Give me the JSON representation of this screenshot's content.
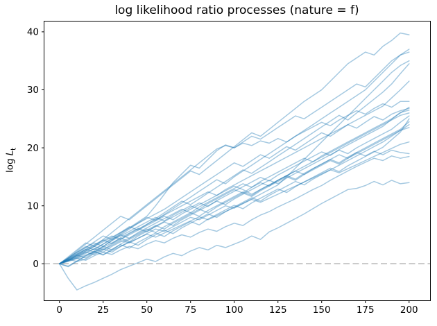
{
  "chart_data": {
    "type": "line",
    "title": "log likelihood ratio processes (nature = f)",
    "ylabel": {
      "prefix": "log",
      "var": "L",
      "sub": "t"
    },
    "xlabel": "",
    "xlim": [
      -9,
      212
    ],
    "ylim": [
      -6.3,
      41.9
    ],
    "xticks": [
      0,
      25,
      50,
      75,
      100,
      125,
      150,
      175,
      200
    ],
    "yticks": [
      0,
      10,
      20,
      30,
      40
    ],
    "grid": false,
    "legend": "none",
    "zero_line": {
      "y": 0,
      "style": "dashed",
      "color": "#ababab"
    },
    "line_color": "#1f77b4",
    "line_alpha": 0.4,
    "line_width": 1.5,
    "x_start": 0,
    "x_step": 5,
    "series": [
      {
        "name": "path-01",
        "values": [
          0,
          -2.5,
          -4.5,
          -3.8,
          -3.2,
          -2.5,
          -1.8,
          -1,
          -0.4,
          0.2,
          0.8,
          0.4,
          1.2,
          1.8,
          1.4,
          2.2,
          2.8,
          2.4,
          3.2,
          2.8,
          3.4,
          4,
          4.8,
          4.2,
          5.5,
          6.2,
          7,
          7.8,
          8.6,
          9.5,
          10.4,
          11.2,
          12,
          12.8,
          13,
          13.5,
          14.2,
          13.6,
          14.4,
          13.8,
          14
        ]
      },
      {
        "name": "path-02",
        "values": [
          0,
          0.5,
          1,
          0.6,
          1.4,
          2,
          1.6,
          2.4,
          3,
          2.6,
          3.4,
          4,
          3.6,
          4.4,
          5,
          4.6,
          5.4,
          6,
          5.6,
          6.4,
          7,
          6.6,
          7.6,
          8.4,
          9,
          9.8,
          10.5,
          11.2,
          12,
          12.8,
          13.5,
          14.4,
          15.2,
          16,
          16.8,
          17.5,
          18.2,
          17.8,
          18.6,
          18.2,
          18.5
        ]
      },
      {
        "name": "path-03",
        "values": [
          0,
          0.6,
          1.2,
          2,
          2.6,
          2,
          3,
          3.8,
          4.4,
          5.2,
          6,
          5.4,
          6.4,
          7.2,
          8,
          8.8,
          8.2,
          9.2,
          10,
          10.8,
          11.6,
          12.4,
          11.8,
          12.8,
          13.6,
          14.4,
          15.2,
          14.6,
          15.6,
          16.4,
          17.2,
          18,
          17.4,
          18.4,
          19.2,
          18.6,
          19.4,
          18.8,
          19.6,
          19.2,
          19
        ]
      },
      {
        "name": "path-04",
        "values": [
          0,
          0.8,
          0.4,
          1.4,
          2.2,
          3,
          2.4,
          3.4,
          4.2,
          5,
          5.8,
          6.6,
          6,
          7,
          7.8,
          8.6,
          9.4,
          8.8,
          9.8,
          10.6,
          11.4,
          12.2,
          11.6,
          12.6,
          13.4,
          14.2,
          15,
          14.4,
          15.4,
          16.2,
          17,
          17.8,
          17.2,
          18.2,
          19,
          19.8,
          20.6,
          21.4,
          22.2,
          23,
          23.5
        ]
      },
      {
        "name": "path-05",
        "values": [
          0,
          -0.5,
          0.4,
          0.8,
          1.8,
          2.6,
          2,
          3,
          3.8,
          3.2,
          4.2,
          5,
          5.8,
          5.2,
          6.2,
          7,
          7.8,
          8.6,
          8,
          9,
          9.8,
          10.6,
          11.4,
          10.8,
          11.8,
          12.6,
          13.4,
          14.2,
          13.6,
          14.6,
          15.4,
          16.2,
          17,
          17.8,
          18.6,
          19.4,
          20.2,
          21,
          22,
          23,
          24
        ]
      },
      {
        "name": "path-06",
        "values": [
          0,
          1,
          2,
          2.8,
          3.6,
          3,
          4,
          4.8,
          5.6,
          6.4,
          7.2,
          8,
          7.4,
          8.4,
          9.2,
          10,
          9.4,
          10.4,
          11.2,
          12,
          12.8,
          12.2,
          13.2,
          14,
          13.4,
          14.4,
          15.2,
          16,
          15.4,
          16.4,
          17.2,
          18,
          18.8,
          18.2,
          19.2,
          20,
          20.8,
          21.6,
          22.4,
          23.2,
          24.5
        ]
      },
      {
        "name": "path-07",
        "values": [
          0,
          -0.4,
          0.5,
          1.3,
          2.1,
          1.5,
          2.5,
          3.3,
          2.7,
          3.7,
          4.5,
          5.3,
          4.7,
          5.7,
          6.5,
          7.3,
          6.7,
          7.7,
          8.5,
          9.3,
          10.1,
          9.5,
          10.5,
          11.3,
          12.1,
          12.9,
          12.3,
          13.3,
          14.1,
          14.9,
          15.7,
          16.5,
          15.9,
          16.9,
          17.7,
          18.5,
          19.3,
          20.1,
          21.4,
          22.7,
          25
        ]
      },
      {
        "name": "path-08",
        "values": [
          0,
          0.7,
          1.5,
          1,
          2,
          2.8,
          3.6,
          4.4,
          3.8,
          4.8,
          5.6,
          6.4,
          7.2,
          6.6,
          7.6,
          8.4,
          9.2,
          10,
          10.8,
          10.2,
          11.2,
          12,
          12.8,
          13.6,
          14.4,
          13.8,
          14.8,
          15.6,
          16.4,
          17.2,
          18,
          18.8,
          19.6,
          19,
          20,
          20.8,
          21.6,
          22.4,
          23.2,
          24.4,
          25.5
        ]
      },
      {
        "name": "path-09",
        "values": [
          0,
          0.6,
          1.4,
          2.2,
          3,
          2.4,
          3.4,
          4.2,
          5,
          5.8,
          6.6,
          7.4,
          8.2,
          7.6,
          8.6,
          9.4,
          10.2,
          11,
          11.8,
          12.6,
          13.4,
          12.8,
          12,
          12.8,
          13.6,
          14.4,
          15.2,
          16,
          16.8,
          17.6,
          18.4,
          19.2,
          20,
          20.8,
          21.6,
          22.4,
          23.2,
          24,
          24.8,
          25.6,
          26
        ]
      },
      {
        "name": "path-10",
        "values": [
          0,
          0.9,
          1.7,
          2.5,
          3.3,
          4.1,
          3.5,
          4.5,
          5.3,
          6.1,
          5.5,
          6.5,
          7.3,
          8.1,
          8.9,
          9.7,
          10.5,
          9.9,
          10.9,
          11.7,
          12.5,
          13.3,
          14.1,
          14.9,
          14.3,
          15.3,
          16.1,
          16.9,
          17.7,
          18.5,
          19.3,
          18.7,
          19.7,
          20.5,
          21.3,
          22.1,
          22.9,
          23.7,
          24.9,
          26.1,
          26.5
        ]
      },
      {
        "name": "path-11",
        "values": [
          0,
          0.5,
          1,
          1.8,
          2.6,
          3.4,
          4.2,
          5,
          4.4,
          5.4,
          6.2,
          7,
          7.8,
          8.6,
          9.4,
          8.8,
          9.8,
          10.6,
          11.4,
          12.2,
          13,
          13.8,
          13.2,
          14.2,
          15,
          15.8,
          16.6,
          17.4,
          18.2,
          17.6,
          18.6,
          19.4,
          20.2,
          21,
          21.8,
          22.6,
          23.4,
          24.2,
          25,
          26,
          27
        ]
      },
      {
        "name": "path-12",
        "values": [
          0,
          1.2,
          2.4,
          3.6,
          3,
          4.2,
          5.4,
          6.6,
          7.8,
          9,
          10.2,
          11.4,
          12.6,
          13.8,
          15,
          16.2,
          17.4,
          18.6,
          19.8,
          20.4,
          20,
          20.8,
          20.4,
          21.2,
          20.8,
          21.6,
          21,
          22,
          22.8,
          23.6,
          24.4,
          23.8,
          24.8,
          25.6,
          26.4,
          25.8,
          26.8,
          27.6,
          27,
          28,
          28
        ]
      },
      {
        "name": "path-13",
        "values": [
          0,
          0.8,
          1.6,
          2.4,
          3.2,
          4,
          4.8,
          4.2,
          5.2,
          6,
          6.8,
          7.6,
          8.4,
          9.2,
          10,
          10.8,
          11.6,
          12.4,
          11.8,
          12.8,
          13.6,
          14.4,
          15.2,
          16,
          16.8,
          17.6,
          18.4,
          19.2,
          20,
          20.8,
          21.6,
          22.4,
          23.2,
          24,
          24.8,
          25.6,
          26.4,
          27.2,
          28.6,
          30,
          31.5
        ]
      },
      {
        "name": "path-14",
        "values": [
          0,
          1,
          2,
          3,
          2.4,
          3.4,
          4.4,
          5.4,
          6.4,
          5.8,
          6.8,
          7.8,
          8.8,
          9.8,
          10.8,
          10.2,
          11.2,
          12.2,
          13.2,
          14.2,
          15.2,
          16.2,
          15.6,
          16.6,
          17.6,
          18.6,
          19.6,
          20.6,
          21.6,
          22.6,
          23.6,
          24.6,
          25.6,
          24.8,
          26,
          27.2,
          28.4,
          29.6,
          31,
          32.8,
          34.5
        ]
      },
      {
        "name": "path-15",
        "values": [
          0,
          0.6,
          1.2,
          2,
          1.6,
          2.4,
          3.2,
          4,
          3.6,
          4.4,
          5.2,
          6,
          5.6,
          6.4,
          7.2,
          8,
          7.6,
          8.4,
          9.2,
          10,
          9.6,
          10.4,
          11.2,
          12,
          12.8,
          13.6,
          15,
          16.5,
          18,
          19.5,
          21,
          22.5,
          24,
          25.5,
          27,
          28.5,
          30,
          31.5,
          33,
          34.2,
          35
        ]
      },
      {
        "name": "path-16",
        "values": [
          0,
          0.8,
          1.8,
          2.8,
          3.8,
          4.8,
          4.2,
          5.2,
          6.2,
          7.2,
          8.2,
          10,
          12,
          14,
          15.5,
          17,
          16.5,
          18,
          19.5,
          20.5,
          20,
          21,
          22,
          21.5,
          22.5,
          23.5,
          24.5,
          25.5,
          25,
          26,
          27,
          28,
          29,
          30,
          31,
          30.5,
          32,
          33.5,
          35,
          36,
          36.5
        ]
      },
      {
        "name": "path-17",
        "values": [
          0,
          0.5,
          1.5,
          2.5,
          2,
          3,
          4,
          5,
          6,
          7,
          8,
          7.5,
          8.5,
          9.5,
          10.5,
          11.5,
          12.5,
          13.5,
          14.5,
          13.8,
          15,
          16,
          17,
          18,
          19,
          20,
          21,
          22,
          23,
          24,
          25,
          26,
          27,
          28,
          29,
          30,
          31.5,
          33,
          34.5,
          36,
          37
        ]
      },
      {
        "name": "path-18",
        "values": [
          0,
          1,
          2.2,
          3.4,
          4.6,
          5.8,
          7,
          8.2,
          7.6,
          8.8,
          10,
          11.2,
          12.4,
          13.6,
          14.8,
          16,
          15.4,
          16.6,
          17.8,
          19,
          20.2,
          21.4,
          22.6,
          22,
          23.2,
          24.4,
          25.6,
          26.8,
          28,
          29,
          30,
          31.5,
          33,
          34.5,
          35.5,
          36.5,
          36,
          37.5,
          38.5,
          39.8,
          39.5
        ]
      },
      {
        "name": "path-19",
        "values": [
          0,
          0.4,
          0.9,
          1.5,
          2.1,
          1.6,
          2.3,
          3,
          3.7,
          4.4,
          5.1,
          4.6,
          5.3,
          6,
          6.7,
          7.4,
          8.1,
          7.6,
          8.3,
          9,
          9.7,
          10.4,
          11.1,
          10.6,
          11.3,
          12,
          12.7,
          13.4,
          14.1,
          14.8,
          15.5,
          16.2,
          15.7,
          16.4,
          17.1,
          17.8,
          18.5,
          19.2,
          19.9,
          20.6,
          21
        ]
      },
      {
        "name": "path-20",
        "values": [
          0,
          0.7,
          1.4,
          2.2,
          3,
          3.8,
          4.6,
          5.4,
          6.2,
          7,
          7.8,
          8.6,
          9.4,
          10.4,
          11.4,
          12.4,
          13.4,
          14.4,
          15.4,
          16.4,
          17.4,
          16.8,
          17.8,
          18.8,
          18.2,
          19.2,
          20.2,
          19.6,
          20.6,
          21.6,
          22.6,
          22,
          23,
          24,
          23.4,
          24.4,
          25.4,
          24.8,
          25.8,
          26.4,
          26.8
        ]
      }
    ]
  }
}
